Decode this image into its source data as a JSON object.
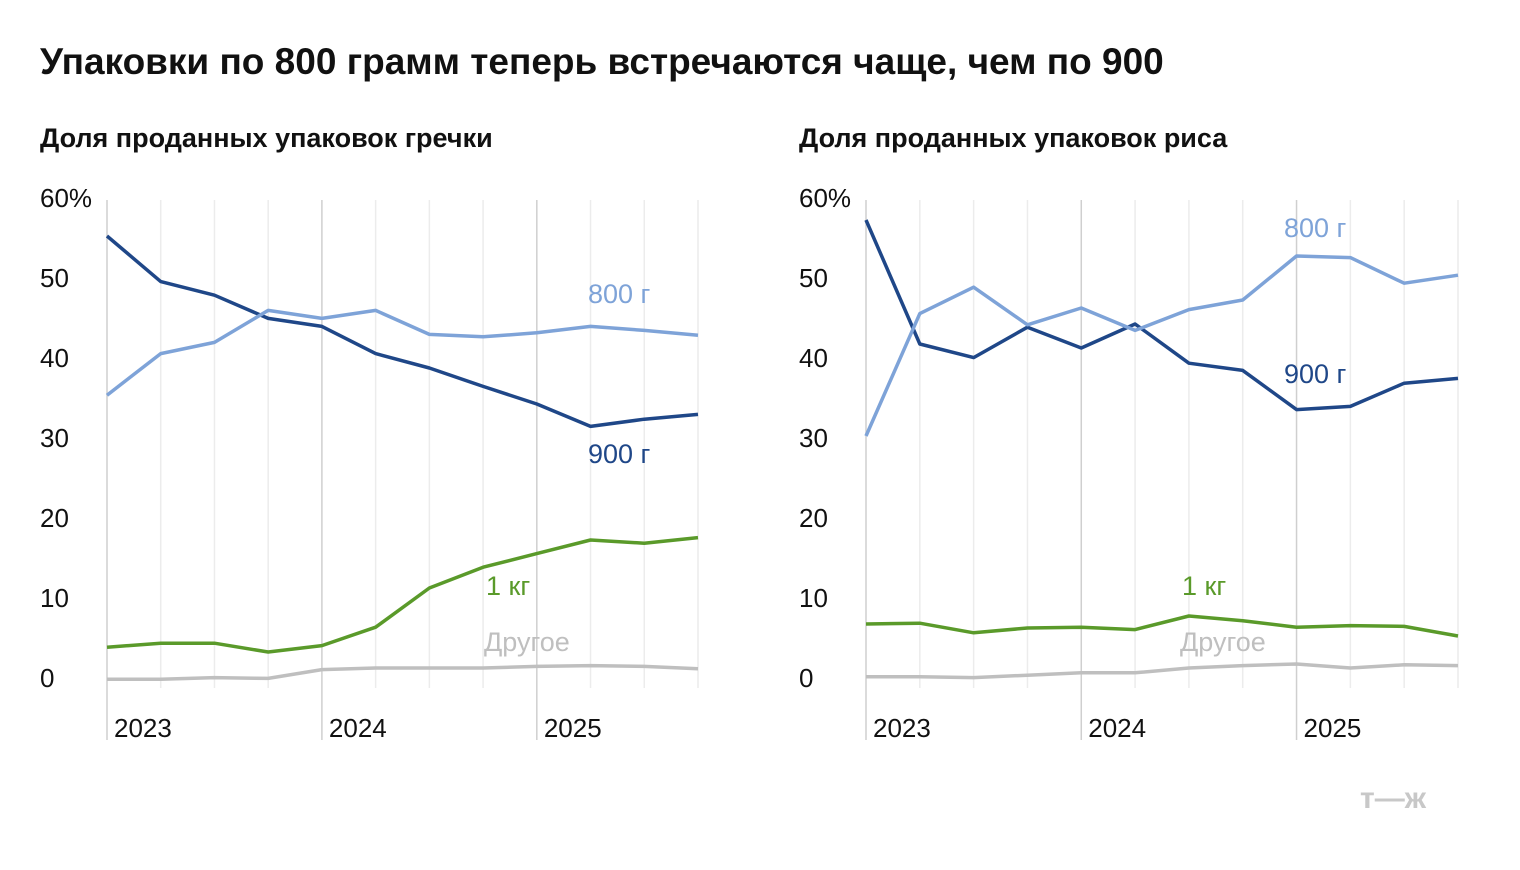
{
  "title": "Упаковки по 800 грамм теперь встречаются чаще, чем по 900",
  "logo": "т—ж",
  "chart_data": [
    {
      "type": "line",
      "title": "Доля проданных упаковок гречки",
      "categories": [
        "2023",
        null,
        null,
        null,
        "2024",
        null,
        null,
        null,
        "2025",
        null,
        null,
        null
      ],
      "series": [
        {
          "name": "800 г",
          "color": "#7ea3d8",
          "values": [
            35.6,
            40.8,
            42.2,
            46.2,
            45.2,
            46.2,
            43.2,
            42.9,
            43.4,
            44.2,
            43.7,
            43.1
          ]
        },
        {
          "name": "900 г",
          "color": "#1f4788",
          "values": [
            55.5,
            49.8,
            48.1,
            45.2,
            44.2,
            40.8,
            39.0,
            36.7,
            34.5,
            31.7,
            32.6,
            33.2
          ]
        },
        {
          "name": "1 кг",
          "color": "#5a9a2a",
          "values": [
            4.1,
            4.6,
            4.6,
            3.5,
            4.3,
            6.6,
            11.5,
            14.1,
            15.8,
            17.5,
            17.1,
            17.8
          ]
        },
        {
          "name": "Другое",
          "color": "#bfbfbf",
          "values": [
            0.1,
            0.1,
            0.3,
            0.2,
            1.3,
            1.5,
            1.5,
            1.5,
            1.7,
            1.8,
            1.7,
            1.4
          ]
        }
      ],
      "ylim": [
        0,
        60
      ],
      "yticks": [
        0,
        10,
        20,
        30,
        40,
        50,
        {
          "value": 60,
          "label": "60%"
        }
      ]
    },
    {
      "type": "line",
      "title": "Доля проданных упаковок риса",
      "categories": [
        "2023",
        null,
        null,
        null,
        "2024",
        null,
        null,
        null,
        "2025",
        null,
        null,
        null
      ],
      "series": [
        {
          "name": "800 г",
          "color": "#7ea3d8",
          "values": [
            30.5,
            45.8,
            49.1,
            44.4,
            46.5,
            43.7,
            46.3,
            47.5,
            53.0,
            52.8,
            49.6,
            50.6
          ]
        },
        {
          "name": "900 г",
          "color": "#1f4788",
          "values": [
            57.5,
            42.0,
            40.3,
            44.1,
            41.5,
            44.5,
            39.6,
            38.7,
            33.8,
            34.2,
            37.1,
            37.7
          ]
        },
        {
          "name": "1 кг",
          "color": "#5a9a2a",
          "values": [
            7.0,
            7.1,
            5.9,
            6.5,
            6.6,
            6.3,
            8.0,
            7.4,
            6.6,
            6.8,
            6.7,
            5.5
          ]
        },
        {
          "name": "Другое",
          "color": "#bfbfbf",
          "values": [
            0.4,
            0.4,
            0.3,
            0.6,
            0.9,
            0.9,
            1.5,
            1.8,
            2.0,
            1.5,
            1.9,
            1.8
          ]
        }
      ],
      "ylim": [
        0,
        60
      ],
      "yticks": [
        0,
        10,
        20,
        30,
        40,
        50,
        {
          "value": 60,
          "label": "60%"
        }
      ]
    }
  ]
}
